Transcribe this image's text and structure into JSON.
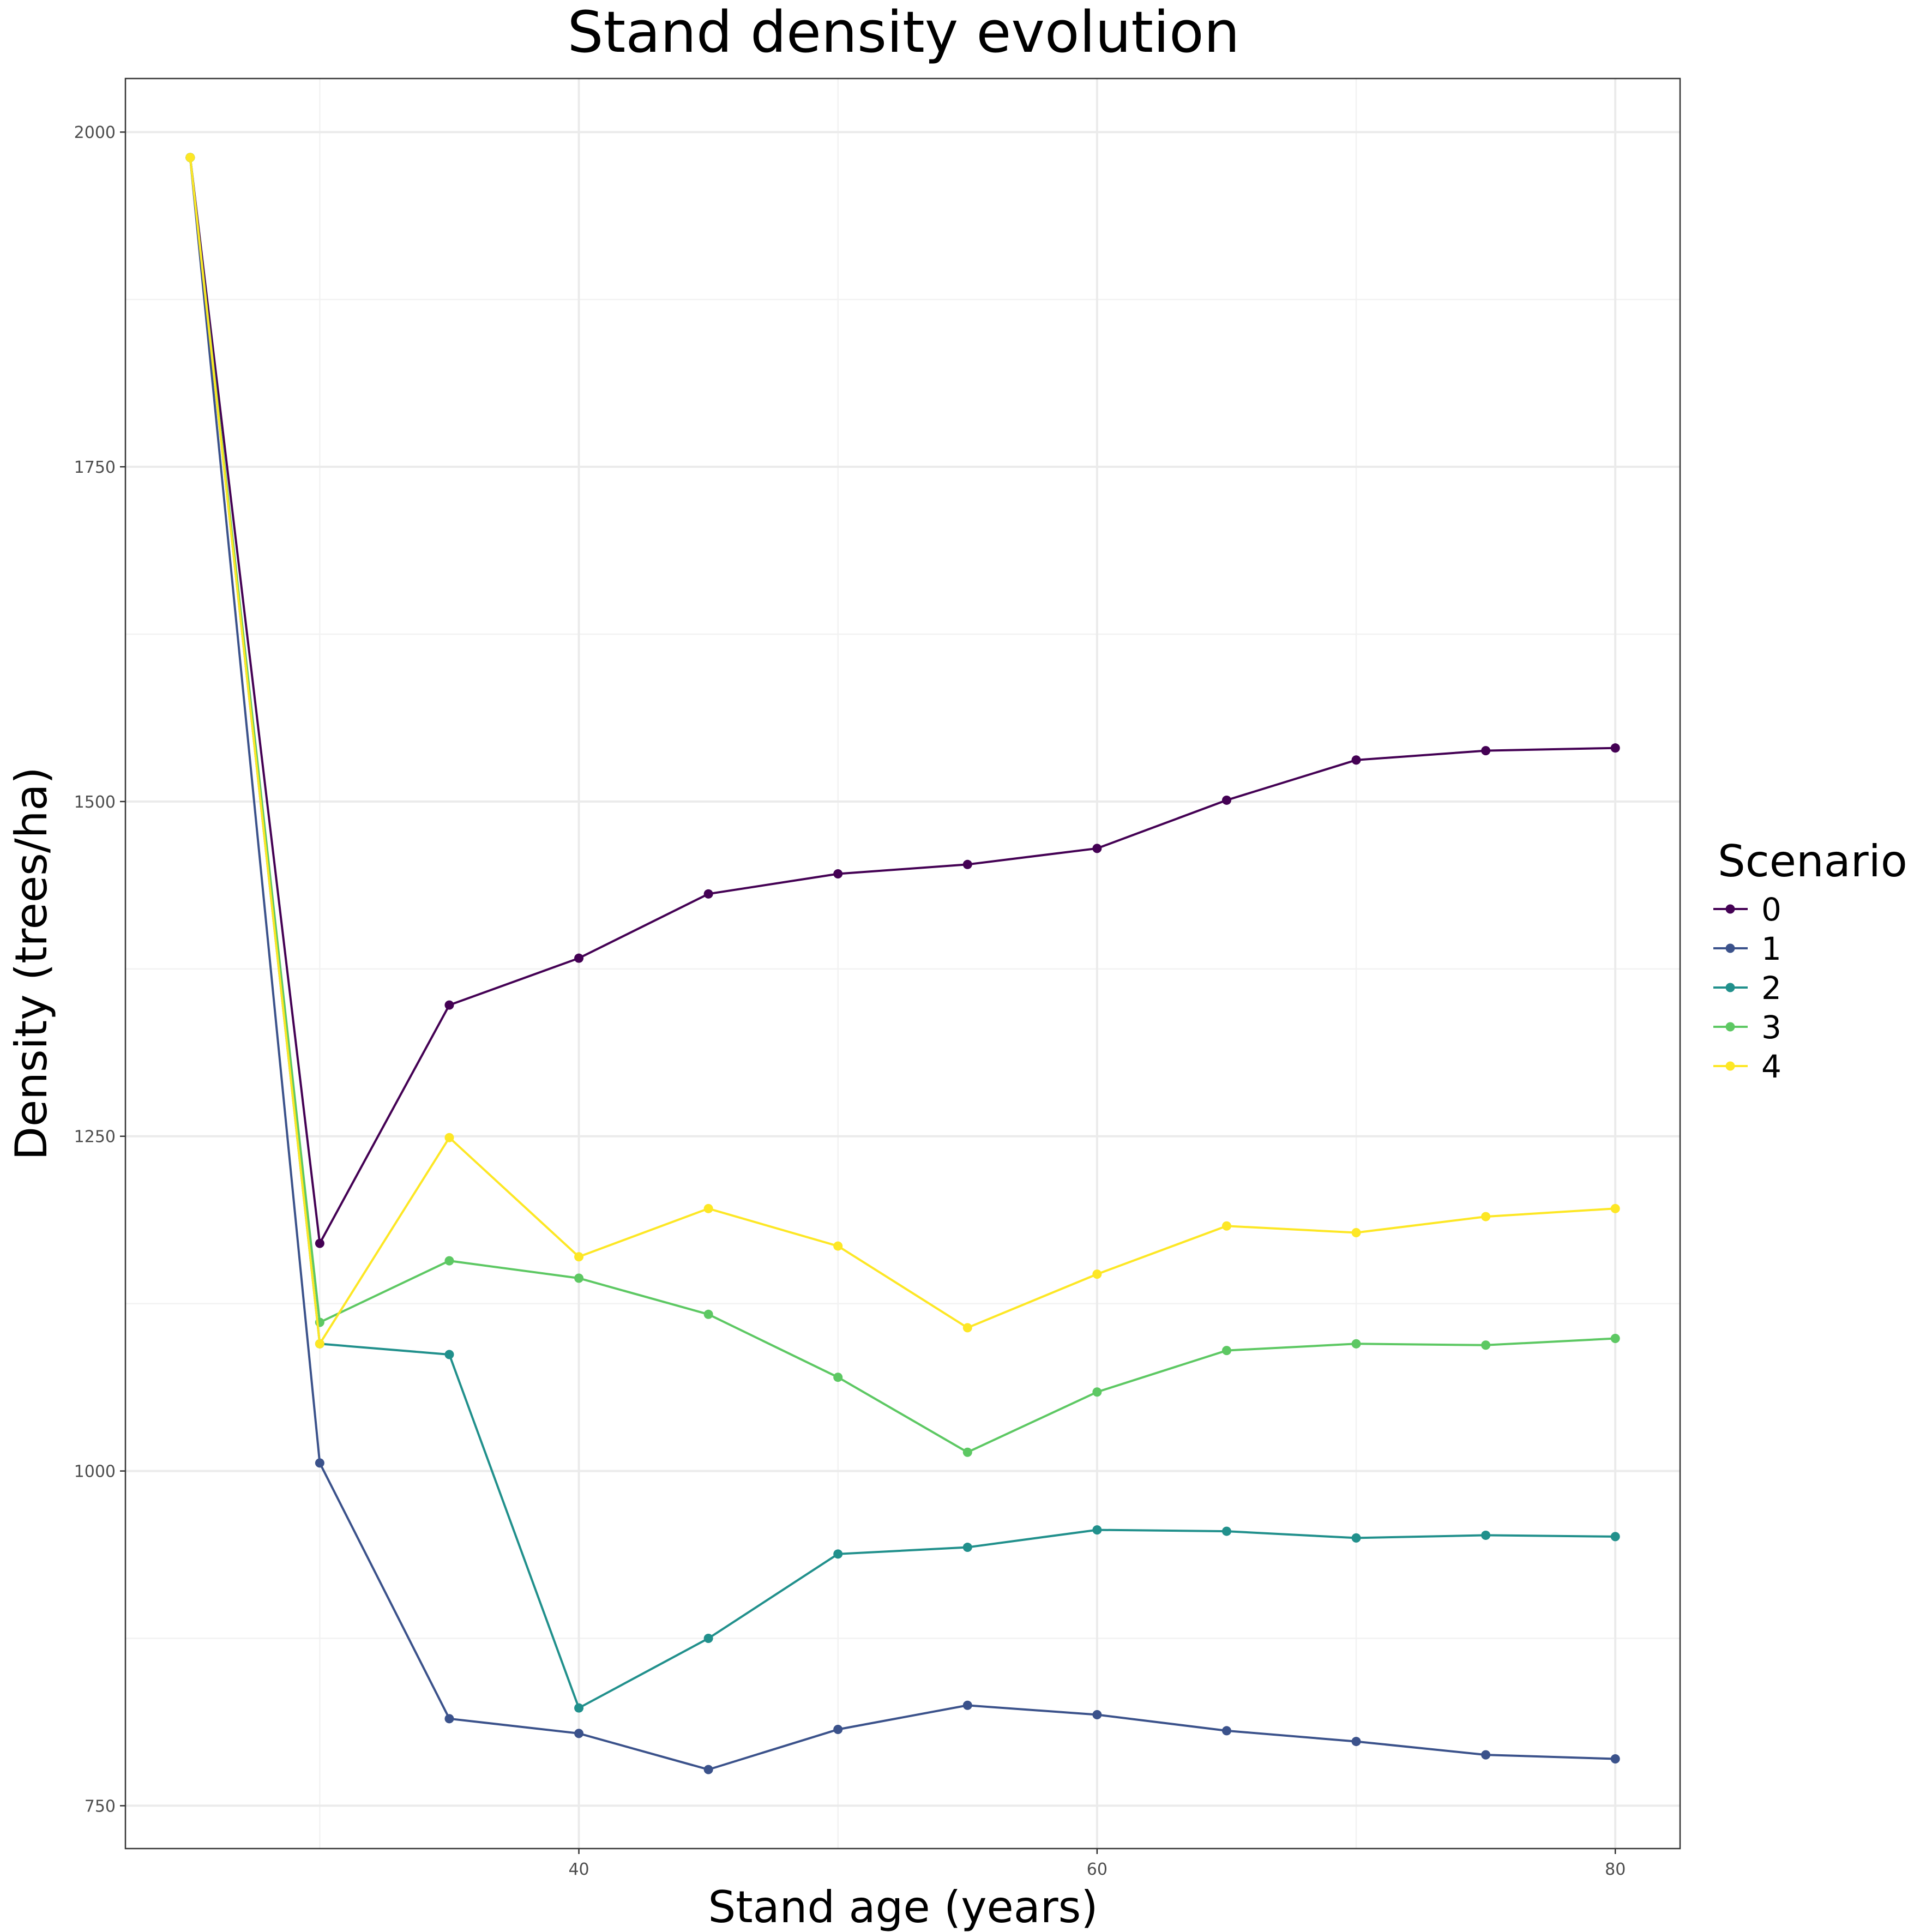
{
  "chart_data": {
    "type": "line",
    "title": "Stand density evolution",
    "xlabel": "Stand age (years)",
    "ylabel": "Density (trees/ha)",
    "xlim": [
      22.5,
      82.5
    ],
    "ylim": [
      718,
      2040
    ],
    "x_ticks": [
      40,
      60,
      80
    ],
    "x_minor_ticks": [
      30,
      50,
      70
    ],
    "y_ticks": [
      750,
      1000,
      1250,
      1500,
      1750,
      2000
    ],
    "y_minor_ticks": [
      875,
      1125,
      1375,
      1625,
      1875
    ],
    "grid": true,
    "legend": {
      "title": "Scenario",
      "position": "right"
    },
    "x": [
      25,
      30,
      35,
      40,
      45,
      50,
      55,
      60,
      65,
      70,
      75,
      80
    ],
    "series": [
      {
        "name": "0",
        "color": "#440154",
        "values": [
          1981,
          1170,
          1348,
          1383,
          1431,
          1446,
          1453,
          1465,
          1501,
          1531,
          1538,
          1540
        ]
      },
      {
        "name": "1",
        "color": "#3B528B",
        "values": [
          1981,
          1006,
          815,
          804,
          777,
          807,
          825,
          818,
          806,
          798,
          788,
          785
        ]
      },
      {
        "name": "2",
        "color": "#21908C",
        "values": [
          1981,
          1095,
          1087,
          823,
          875,
          938,
          943,
          956,
          955,
          950,
          952,
          951
        ]
      },
      {
        "name": "3",
        "color": "#5DC863",
        "values": [
          1981,
          1111,
          1157,
          1144,
          1117,
          1070,
          1014,
          1059,
          1090,
          1095,
          1094,
          1099
        ]
      },
      {
        "name": "4",
        "color": "#FDE725",
        "values": [
          1981,
          1095,
          1249,
          1160,
          1196,
          1168,
          1107,
          1147,
          1183,
          1178,
          1190,
          1196
        ]
      }
    ]
  }
}
